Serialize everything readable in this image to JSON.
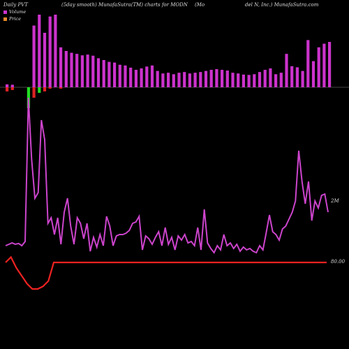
{
  "header": {
    "left": "Daily PVT",
    "center": "(5day smooth) MunafaSutra(TM) charts for MODN",
    "right_a": "(Mo",
    "right_b": "del N, Inc.) MunafaSutra.com"
  },
  "legend": [
    {
      "label": "Volume",
      "color": "#cc33cc"
    },
    {
      "label": "Price",
      "color": "#e88a2a"
    }
  ],
  "colors": {
    "background": "#000000",
    "volume_up": "#cc33cc",
    "volume_down_red": "#dd2222",
    "pvt_negative": "#22dd22",
    "pvt_line": "#cc44cc",
    "price_line": "#ee2222",
    "baseline": "#888888"
  },
  "chart_data": {
    "type": "bar+line",
    "title": "Daily PVT (5day smooth) MunafaSutra(TM) charts for MODN",
    "series": [
      {
        "name": "Volume",
        "type": "bar",
        "values": [
          8,
          7,
          0,
          0,
          0,
          170,
          200,
          150,
          195,
          200,
          110,
          100,
          95,
          92,
          88,
          90,
          87,
          80,
          75,
          70,
          68,
          62,
          60,
          54,
          48,
          52,
          57,
          60,
          45,
          38,
          40,
          36,
          40,
          42,
          38,
          40,
          42,
          45,
          48,
          50,
          48,
          46,
          40,
          38,
          35,
          34,
          36,
          42,
          48,
          52,
          36,
          40,
          92,
          58,
          55,
          45,
          130,
          72,
          110,
          120,
          125
        ]
      },
      {
        "name": "PVT",
        "type": "bar",
        "values": [
          -6,
          -4,
          0,
          0,
          -30,
          -15,
          -8,
          -6,
          -2,
          0,
          -2,
          0,
          0,
          0,
          0,
          0,
          0,
          0,
          0,
          0,
          0,
          0,
          0,
          0,
          0,
          0,
          0,
          0,
          0,
          0,
          0,
          0,
          0,
          0,
          0,
          0,
          0,
          0,
          0,
          0,
          0,
          0,
          0,
          0,
          0,
          0,
          0,
          0,
          0,
          0,
          0,
          0,
          0,
          0,
          0,
          0,
          0,
          0,
          0,
          0,
          0
        ]
      },
      {
        "name": "PVT line",
        "type": "line",
        "values": [
          0.5,
          0.55,
          0.6,
          0.55,
          0.58,
          0.5,
          0.65,
          5.8,
          3.6,
          2.2,
          2.4,
          5.0,
          4.3,
          1.3,
          1.5,
          0.9,
          1.5,
          0.55,
          1.7,
          2.2,
          1.2,
          0.55,
          1.5,
          1.3,
          0.75,
          1.3,
          0.3,
          0.8,
          0.45,
          0.9,
          0.5,
          1.55,
          1.2,
          0.5,
          0.85,
          0.9,
          0.9,
          0.95,
          1.05,
          1.3,
          1.35,
          1.55,
          0.35,
          0.85,
          0.75,
          0.55,
          0.8,
          1.0,
          0.5,
          1.15,
          0.55,
          0.8,
          0.35,
          0.85,
          0.7,
          0.9,
          0.6,
          0.65,
          0.5,
          1.15,
          0.35,
          1.8,
          0.6,
          0.4,
          0.25,
          0.5,
          0.35,
          0.9,
          0.5,
          0.6,
          0.4,
          0.55,
          0.3,
          0.45,
          0.35,
          0.4,
          0.3,
          0.25,
          0.5,
          0.35,
          0.95,
          1.6,
          1.0,
          0.9,
          0.7,
          1.1,
          1.2,
          1.45,
          1.7,
          2.1,
          3.9,
          2.8,
          2.0,
          2.8,
          1.4,
          2.1,
          1.85,
          2.3,
          2.35,
          1.7
        ]
      },
      {
        "name": "Price",
        "type": "line",
        "values": [
          80,
          82,
          78,
          75,
          72,
          70,
          70,
          71,
          73,
          80,
          80,
          80,
          80,
          80,
          80,
          80,
          80,
          80,
          80,
          80,
          80,
          80,
          80,
          80,
          80,
          80,
          80,
          80,
          80,
          80,
          80,
          80,
          80,
          80,
          80,
          80,
          80,
          80,
          80,
          80,
          80,
          80,
          80,
          80,
          80,
          80,
          80,
          80,
          80,
          80,
          80,
          80,
          80,
          80,
          80,
          80,
          80,
          80,
          80,
          80,
          80
        ]
      }
    ],
    "labels": {
      "pvt_end": "2M",
      "price_end": "80.00"
    }
  }
}
